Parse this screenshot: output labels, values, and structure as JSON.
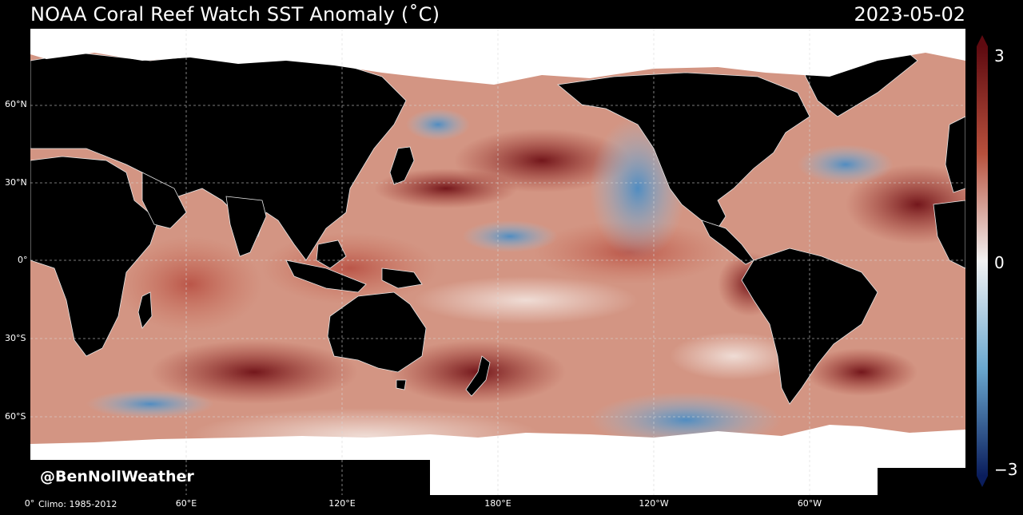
{
  "title": "NOAA Coral Reef Watch SST Anomaly (˚C)",
  "date": "2023-05-02",
  "credit": "@BenNollWeather",
  "climo": "Climo: 1985-2012",
  "lat_labels": [
    "60°N",
    "30°N",
    "0°",
    "30°S",
    "60°S"
  ],
  "lon_labels": [
    "0°",
    "60°E",
    "120°E",
    "180°E",
    "120°W",
    "60°W"
  ],
  "colorbar": {
    "max_label": "3",
    "mid_label": "0",
    "min_label": "−3",
    "colors": {
      "max": "#5e0a10",
      "warm": "#b8503c",
      "zero": "#f2f2f2",
      "cool": "#6aa8cf",
      "min": "#0a1d5c"
    }
  },
  "colors": {
    "land": "#000000",
    "ice": "#ffffff",
    "ocean_warm": "#c86a55",
    "ocean_hot": "#7e1a1e",
    "ocean_neutral": "#ecd6cf",
    "ocean_cool": "#7fb4d6",
    "ocean_cold": "#2b5fa8"
  }
}
